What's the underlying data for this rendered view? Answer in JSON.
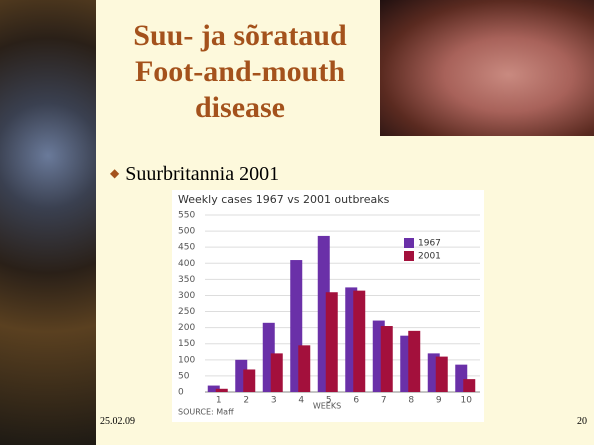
{
  "slide": {
    "title_lines": [
      "Suu- ja sõrataud",
      "Foot-and-mouth",
      "disease"
    ],
    "bullet": "Suurbritannia 2001",
    "date": "25.02.09",
    "page_number": "20"
  },
  "chart_data": {
    "type": "bar",
    "title": "Weekly cases 1967 vs 2001 outbreaks",
    "x_label": "WEEKS",
    "source": "SOURCE: Maff",
    "categories": [
      "1",
      "2",
      "3",
      "4",
      "5",
      "6",
      "7",
      "8",
      "9",
      "10"
    ],
    "series": [
      {
        "name": "1967",
        "color": "#6a30a8",
        "values": [
          20,
          100,
          215,
          410,
          485,
          325,
          222,
          175,
          120,
          85
        ]
      },
      {
        "name": "2001",
        "color": "#a3103c",
        "values": [
          10,
          70,
          120,
          145,
          310,
          315,
          205,
          190,
          110,
          40
        ]
      }
    ],
    "ylim": [
      0,
      550
    ],
    "yticks": [
      0,
      50,
      100,
      150,
      200,
      250,
      300,
      350,
      400,
      450,
      500,
      550
    ],
    "grid": true,
    "legend": "upper right"
  }
}
